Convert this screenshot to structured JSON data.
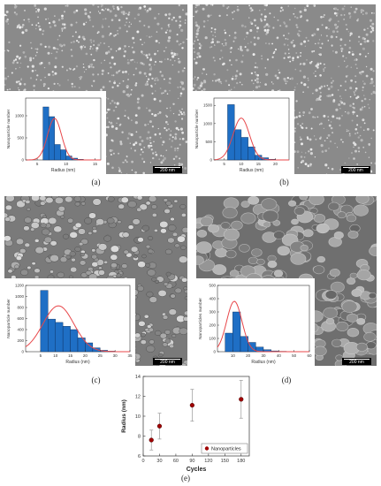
{
  "panels": [
    {
      "id": "a",
      "label": "(a)",
      "scale_bar": "200 nm",
      "sem_tone": "fine",
      "chart_data": {
        "type": "bar",
        "ylabel": "Nanoparticle number",
        "xlabel": "Radius (nm)",
        "bin_width": 1,
        "bins": [
          {
            "x0": 6,
            "count": 1200
          },
          {
            "x0": 7,
            "count": 980
          },
          {
            "x0": 8,
            "count": 350
          },
          {
            "x0": 9,
            "count": 230
          },
          {
            "x0": 10,
            "count": 90
          },
          {
            "x0": 11,
            "count": 40
          },
          {
            "x0": 12,
            "count": 15
          }
        ],
        "fit_curve": "normal fit",
        "fit": {
          "mean": 8,
          "sd": 1.2,
          "peak": 940
        },
        "xlim": [
          3,
          16
        ],
        "ylim": [
          0,
          1400
        ],
        "xticks": [
          5,
          10,
          15
        ],
        "yticks": [
          0,
          500,
          1000
        ]
      }
    },
    {
      "id": "b",
      "label": "(b)",
      "scale_bar": "200 nm",
      "sem_tone": "fine",
      "chart_data": {
        "type": "bar",
        "ylabel": "Nanoparticle number",
        "xlabel": "Radius (nm)",
        "bin_width": 2,
        "bins": [
          {
            "x0": 6,
            "count": 1520
          },
          {
            "x0": 8,
            "count": 830
          },
          {
            "x0": 10,
            "count": 620
          },
          {
            "x0": 12,
            "count": 360
          },
          {
            "x0": 14,
            "count": 130
          },
          {
            "x0": 16,
            "count": 60
          },
          {
            "x0": 18,
            "count": 20
          }
        ],
        "fit_curve": "normal fit",
        "fit": {
          "mean": 10,
          "sd": 2.4,
          "peak": 1150
        },
        "xlim": [
          2,
          24
        ],
        "ylim": [
          0,
          1700
        ],
        "xticks": [
          5,
          10,
          15,
          20
        ],
        "yticks": [
          0,
          500,
          1000,
          1500
        ]
      }
    },
    {
      "id": "c",
      "label": "(c)",
      "scale_bar": "200 nm",
      "sem_tone": "coarse",
      "chart_data": {
        "type": "bar",
        "ylabel": "Nanoparticle number",
        "xlabel": "Radius (nm)",
        "bin_width": 2.5,
        "bins": [
          {
            "x0": 5,
            "count": 1110
          },
          {
            "x0": 7.5,
            "count": 590
          },
          {
            "x0": 10,
            "count": 530
          },
          {
            "x0": 12.5,
            "count": 460
          },
          {
            "x0": 15,
            "count": 400
          },
          {
            "x0": 17.5,
            "count": 250
          },
          {
            "x0": 20,
            "count": 160
          },
          {
            "x0": 22.5,
            "count": 70
          },
          {
            "x0": 25,
            "count": 25
          },
          {
            "x0": 27.5,
            "count": 10
          }
        ],
        "fit_curve": "normal fit",
        "fit": {
          "mean": 11,
          "sd": 5.2,
          "peak": 830
        },
        "xlim": [
          0,
          35
        ],
        "ylim": [
          0,
          1200
        ],
        "xticks": [
          5,
          10,
          15,
          20,
          25,
          30,
          35
        ],
        "yticks": [
          0,
          200,
          400,
          600,
          800,
          1000,
          1200
        ]
      }
    },
    {
      "id": "d",
      "label": "(d)",
      "scale_bar": "200 nm",
      "sem_tone": "grain",
      "chart_data": {
        "type": "bar",
        "ylabel": "Nanoparticles number",
        "xlabel": "Radius (nm)",
        "bin_width": 5,
        "bins": [
          {
            "x0": 5,
            "count": 140
          },
          {
            "x0": 10,
            "count": 300
          },
          {
            "x0": 15,
            "count": 115
          },
          {
            "x0": 20,
            "count": 70
          },
          {
            "x0": 25,
            "count": 35
          },
          {
            "x0": 30,
            "count": 15
          },
          {
            "x0": 35,
            "count": 6
          },
          {
            "x0": 40,
            "count": 3
          }
        ],
        "fit_curve": "normal fit",
        "fit": {
          "mean": 11,
          "sd": 5,
          "peak": 380
        },
        "xlim": [
          0,
          60
        ],
        "ylim": [
          0,
          500
        ],
        "xticks": [
          10,
          20,
          30,
          40,
          50,
          60
        ],
        "yticks": [
          0,
          100,
          200,
          300,
          400,
          500
        ]
      }
    }
  ],
  "panel_e": {
    "label": "(e)",
    "chart_data": {
      "type": "scatter",
      "xlabel": "Cycles",
      "ylabel": "Radius (nm)",
      "xlim": [
        0,
        195
      ],
      "ylim": [
        6,
        14
      ],
      "xticks": [
        0,
        30,
        60,
        90,
        120,
        150,
        180
      ],
      "yticks": [
        6,
        8,
        10,
        12,
        14
      ],
      "series": [
        {
          "name": "Nanoparticles",
          "color": "#a00000",
          "points": [
            {
              "x": 15,
              "y": 7.6,
              "err": 1.0
            },
            {
              "x": 30,
              "y": 9.0,
              "err": 1.3
            },
            {
              "x": 90,
              "y": 11.1,
              "err": 1.6
            },
            {
              "x": 180,
              "y": 11.7,
              "err": 1.9
            }
          ]
        }
      ],
      "legend_position": "bottom-right"
    }
  },
  "colors": {
    "bar": "#1f6fc5",
    "fit": "#e8474a",
    "axis": "#333333"
  }
}
